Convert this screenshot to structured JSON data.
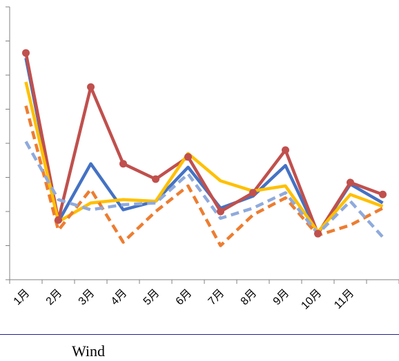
{
  "chart_data": {
    "type": "line",
    "categories": [
      "1月",
      "2月",
      "3月",
      "4月",
      "5月",
      "6月",
      "7月",
      "8月",
      "9月",
      "10月",
      "11月",
      ""
    ],
    "ylim": [
      0,
      8
    ],
    "grid": false,
    "series": [
      {
        "color": "#4472C4",
        "dash": "solid",
        "values": [
          6.5,
          1.7,
          3.4,
          2.05,
          2.3,
          3.3,
          2.1,
          2.45,
          3.35,
          1.35,
          2.8,
          2.25
        ]
      },
      {
        "color": "#C0504D",
        "dash": "solid",
        "marker": true,
        "values": [
          6.65,
          1.75,
          5.65,
          3.4,
          2.95,
          3.6,
          2.0,
          2.55,
          3.8,
          1.35,
          2.85,
          2.5
        ]
      },
      {
        "color": "#FFC000",
        "dash": "solid",
        "values": [
          5.8,
          1.7,
          2.25,
          2.35,
          2.3,
          3.7,
          2.9,
          2.6,
          2.75,
          1.4,
          2.5,
          2.15
        ]
      },
      {
        "color": "#ED7D31",
        "dash": "dashed",
        "values": [
          5.1,
          1.45,
          2.65,
          1.1,
          2.0,
          2.75,
          1.0,
          1.9,
          2.4,
          1.3,
          1.6,
          2.1
        ]
      },
      {
        "color": "#8FAADC",
        "dash": "dashed",
        "values": [
          4.05,
          2.35,
          2.05,
          2.2,
          2.25,
          3.1,
          1.8,
          2.1,
          2.55,
          1.35,
          2.3,
          1.25
        ]
      }
    ]
  },
  "footer": {
    "label": "Wind"
  }
}
